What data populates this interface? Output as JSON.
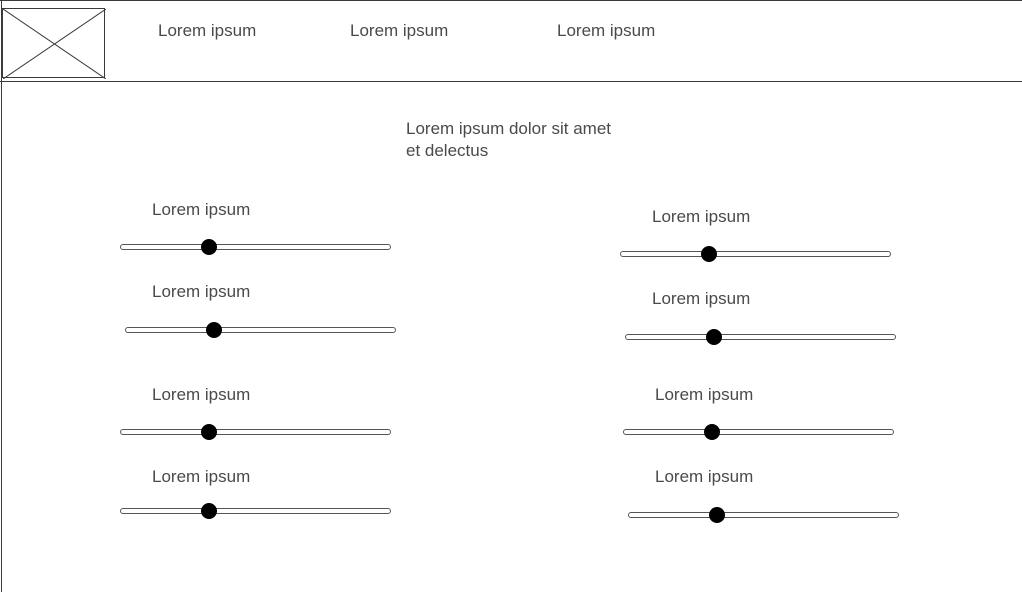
{
  "nav": {
    "items": [
      {
        "label": "Lorem ipsum"
      },
      {
        "label": "Lorem ipsum"
      },
      {
        "label": "Lorem ipsum"
      }
    ]
  },
  "logo": {
    "icon": "image-placeholder-icon"
  },
  "main": {
    "headline": "Lorem ipsum dolor sit amet et delectus"
  },
  "sliders": [
    {
      "label": "Lorem ipsum",
      "value": 0.33
    },
    {
      "label": "Lorem ipsum",
      "value": 0.33
    },
    {
      "label": "Lorem ipsum",
      "value": 0.33
    },
    {
      "label": "Lorem ipsum",
      "value": 0.33
    },
    {
      "label": "Lorem ipsum",
      "value": 0.33
    },
    {
      "label": "Lorem ipsum",
      "value": 0.33
    },
    {
      "label": "Lorem ipsum",
      "value": 0.33
    },
    {
      "label": "Lorem ipsum",
      "value": 0.33
    }
  ],
  "colors": {
    "line": "#3a3a3a",
    "text": "#4a4a4a",
    "thumb": "#000000"
  }
}
